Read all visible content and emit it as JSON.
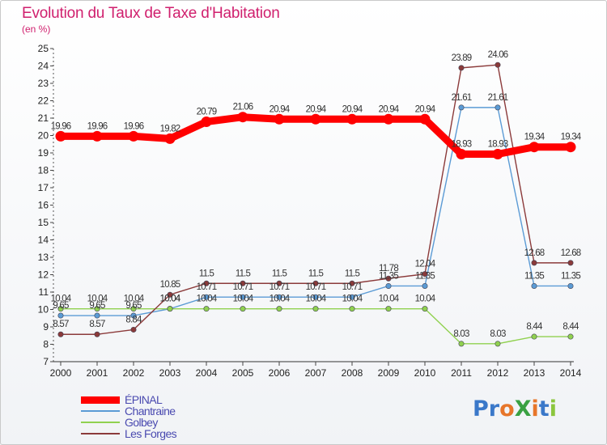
{
  "title": "Evolution du Taux de Taxe d'Habitation",
  "unit": "(en %)",
  "logo": {
    "text": "ProXiti",
    "letters": [
      {
        "ch": "P",
        "color": "#3a78c9"
      },
      {
        "ch": "r",
        "color": "#3a78c9"
      },
      {
        "ch": "o",
        "color": "#e7762a"
      },
      {
        "ch": "X",
        "color": "#3aa142"
      },
      {
        "ch": "i",
        "color": "#e7762a"
      },
      {
        "ch": "t",
        "color": "#3a78c9"
      },
      {
        "ch": "i",
        "color": "#8cc63e"
      }
    ]
  },
  "chart_data": {
    "type": "line",
    "title": "Evolution du Taux de Taxe d'Habitation",
    "ylabel": "(en %)",
    "xlabel": "",
    "x": [
      "2000",
      "2001",
      "2002",
      "2003",
      "2004",
      "2005",
      "2006",
      "2007",
      "2008",
      "2009",
      "2010",
      "2011",
      "2012",
      "2013",
      "2014"
    ],
    "ylim": [
      7,
      25
    ],
    "yticks": [
      7,
      8,
      9,
      10,
      11,
      12,
      13,
      14,
      15,
      16,
      17,
      18,
      19,
      20,
      21,
      22,
      23,
      24,
      25
    ],
    "grid": false,
    "legend_position": "bottom-left",
    "series": [
      {
        "name": "ÉPINAL",
        "color": "#ff0000",
        "values": [
          19.96,
          19.96,
          19.96,
          19.82,
          20.79,
          21.06,
          20.94,
          20.94,
          20.94,
          20.94,
          20.94,
          18.93,
          18.93,
          19.34,
          19.34
        ],
        "labels": [
          "19.96",
          "19.96",
          "19.96",
          "19.82",
          "20.79",
          "21.06",
          "20.94",
          "20.94",
          "20.94",
          "20.94",
          "20.94",
          "18.93",
          "18.93",
          "19.34",
          "19.34"
        ]
      },
      {
        "name": "Chantraine",
        "color": "#5b9bd5",
        "values": [
          9.65,
          9.65,
          9.65,
          10.04,
          10.71,
          10.71,
          10.71,
          10.71,
          10.71,
          11.35,
          11.35,
          21.61,
          21.61,
          11.35,
          11.35
        ],
        "labels": [
          "9.65",
          "9.65",
          "9.65",
          "10.04",
          "10.71",
          "10.71",
          "10.71",
          "10.71",
          "10.71",
          "11.35",
          "11.35",
          "21.61",
          "21.61",
          "11.35",
          "11.35"
        ]
      },
      {
        "name": "Golbey",
        "color": "#90d14f",
        "values": [
          10.04,
          10.04,
          10.04,
          10.04,
          10.04,
          10.04,
          10.04,
          10.04,
          10.04,
          10.04,
          10.04,
          8.03,
          8.03,
          8.44,
          8.44
        ],
        "labels": [
          "10.04",
          "10.04",
          "10.04",
          "10.04",
          "10.04",
          "10.04",
          "10.04",
          "10.04",
          "10.04",
          "10.04",
          "10.04",
          "8.03",
          "8.03",
          "8.44",
          "8.44"
        ]
      },
      {
        "name": "Les Forges",
        "color": "#8b3a3a",
        "values": [
          8.57,
          8.57,
          8.84,
          10.85,
          11.5,
          11.5,
          11.5,
          11.5,
          11.5,
          11.78,
          12.04,
          23.89,
          24.06,
          12.68,
          12.68
        ],
        "labels": [
          "8.57",
          "8.57",
          "8.84",
          "10.85",
          "11.5",
          "11.5",
          "11.5",
          "11.5",
          "11.5",
          "11.78",
          "12.04",
          "23.89",
          "24.06",
          "12.68",
          "12.68"
        ]
      }
    ]
  }
}
